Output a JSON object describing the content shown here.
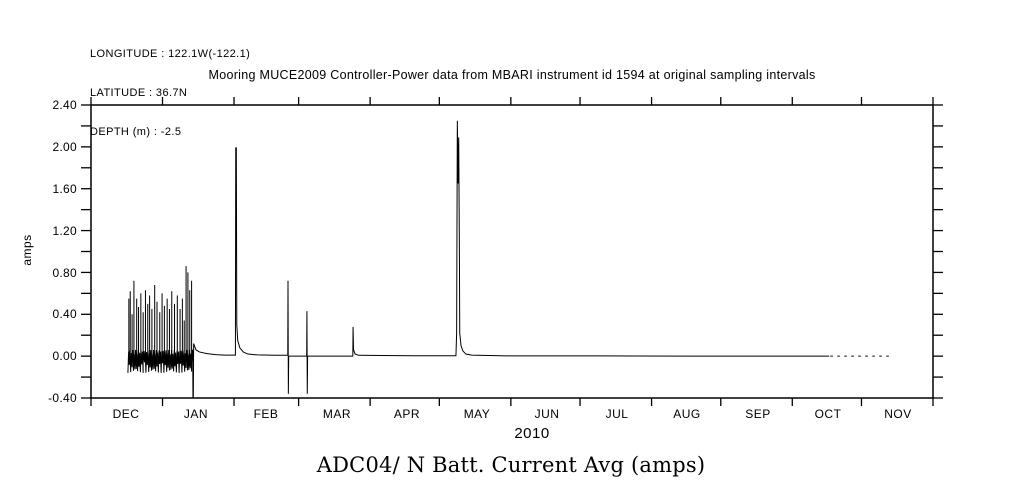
{
  "header": {
    "lines": [
      "LONGITUDE : 122.1W(-122.1)",
      "LATITUDE : 36.7N",
      "DEPTH (m) : -2.5"
    ]
  },
  "chart_data": {
    "type": "line",
    "title": "Mooring MUCE2009 Controller-Power data from MBARI instrument id 1594 at original sampling intervals",
    "ylabel": "amps",
    "xlabel": "",
    "year_label": "2010",
    "bottom_title": "ADC04/ N Batt. Current Avg (amps)",
    "grid": false,
    "legend": null,
    "background_color": "#ffffff",
    "line_color": "#000000",
    "ylim": [
      -0.4,
      2.4
    ],
    "ytick_step_minor": 0.2,
    "ytick_labels": [
      "2.40",
      "2.00",
      "1.60",
      "1.20",
      "0.80",
      "0.40",
      "0.00",
      "-0.40"
    ],
    "ytick_values": [
      2.4,
      2.0,
      1.6,
      1.2,
      0.8,
      0.4,
      0.0,
      -0.4
    ],
    "months": [
      "DEC",
      "JAN",
      "FEB",
      "MAR",
      "APR",
      "MAY",
      "JUN",
      "JUL",
      "AUG",
      "SEP",
      "OCT",
      "NOV"
    ],
    "x_axis_days": 365,
    "x_start_label": "DEC 1 2009",
    "month_boundaries_days": [
      0,
      31,
      62,
      90,
      121,
      151,
      182,
      212,
      243,
      273,
      304,
      334,
      365
    ],
    "series": [
      {
        "name": "ADC04/ N Batt. Current Avg",
        "units": "amps",
        "parts": [
          {
            "type": "noise",
            "comment": "dense oscillating burst mid-DEC to mid-JAN",
            "start": 16.0,
            "end": 44.0,
            "step": 0.3,
            "low": -0.16,
            "high": 0.06,
            "spikes": [
              [
                16.4,
                0.55
              ],
              [
                17.0,
                0.62
              ],
              [
                17.8,
                0.4
              ],
              [
                18.6,
                0.72
              ],
              [
                19.8,
                0.55
              ],
              [
                20.6,
                0.47
              ],
              [
                21.6,
                0.6
              ],
              [
                22.6,
                0.42
              ],
              [
                23.6,
                0.63
              ],
              [
                24.6,
                0.5
              ],
              [
                25.4,
                0.58
              ],
              [
                26.4,
                0.45
              ],
              [
                27.6,
                0.68
              ],
              [
                28.6,
                0.52
              ],
              [
                29.8,
                0.42
              ],
              [
                30.8,
                0.6
              ],
              [
                31.8,
                0.48
              ],
              [
                33.0,
                0.55
              ],
              [
                34.0,
                0.45
              ],
              [
                35.0,
                0.62
              ],
              [
                36.2,
                0.5
              ],
              [
                37.4,
                0.58
              ],
              [
                38.6,
                0.45
              ],
              [
                39.6,
                0.55
              ],
              [
                40.4,
                0.34
              ],
              [
                41.2,
                0.86
              ],
              [
                42.0,
                0.8
              ],
              [
                42.8,
                0.63
              ],
              [
                43.6,
                0.72
              ]
            ]
          },
          {
            "type": "line",
            "points": [
              [
                44.1,
                0.05
              ],
              [
                44.2,
                -0.4
              ],
              [
                44.35,
                -0.4
              ],
              [
                44.5,
                0.12
              ],
              [
                45.5,
                0.06
              ],
              [
                47.0,
                0.04
              ],
              [
                50.0,
                0.025
              ],
              [
                54.0,
                0.015
              ],
              [
                58.0,
                0.01
              ],
              [
                62.6,
                0.01
              ],
              [
                62.75,
                1.99
              ],
              [
                63.0,
                1.99
              ],
              [
                63.2,
                0.3
              ],
              [
                63.6,
                0.15
              ],
              [
                64.5,
                0.08
              ],
              [
                66.0,
                0.04
              ],
              [
                68.0,
                0.02
              ],
              [
                72.0,
                0.012
              ],
              [
                80.0,
                0.008
              ],
              [
                85.3,
                0.008
              ],
              [
                85.4,
                0.72
              ],
              [
                85.55,
                -0.36
              ],
              [
                85.7,
                0.0
              ],
              [
                93.5,
                0.0
              ],
              [
                93.6,
                0.43
              ],
              [
                93.75,
                -0.36
              ],
              [
                93.9,
                0.0
              ],
              [
                113.5,
                0.0
              ],
              [
                113.6,
                0.28
              ],
              [
                113.8,
                0.06
              ],
              [
                114.5,
                0.02
              ],
              [
                116.0,
                0.008
              ],
              [
                140.0,
                0.004
              ],
              [
                158.2,
                0.004
              ],
              [
                158.5,
                0.22
              ],
              [
                158.8,
                2.25
              ],
              [
                159.1,
                1.65
              ],
              [
                159.4,
                2.09
              ],
              [
                159.7,
                1.0
              ],
              [
                159.85,
                0.22
              ],
              [
                160.4,
                0.1
              ],
              [
                161.2,
                0.05
              ],
              [
                162.5,
                0.02
              ],
              [
                165.0,
                0.01
              ],
              [
                180.0,
                0.002
              ],
              [
                220.0,
                0.002
              ],
              [
                260.0,
                0.0
              ],
              [
                300.0,
                0.0
              ],
              [
                320.0,
                0.0
              ]
            ]
          },
          {
            "type": "dashed",
            "comment": "intermittent samples near record end",
            "points": [
              [
                320.5,
                0.0
              ],
              [
                346.0,
                0.0
              ]
            ]
          }
        ]
      }
    ]
  }
}
